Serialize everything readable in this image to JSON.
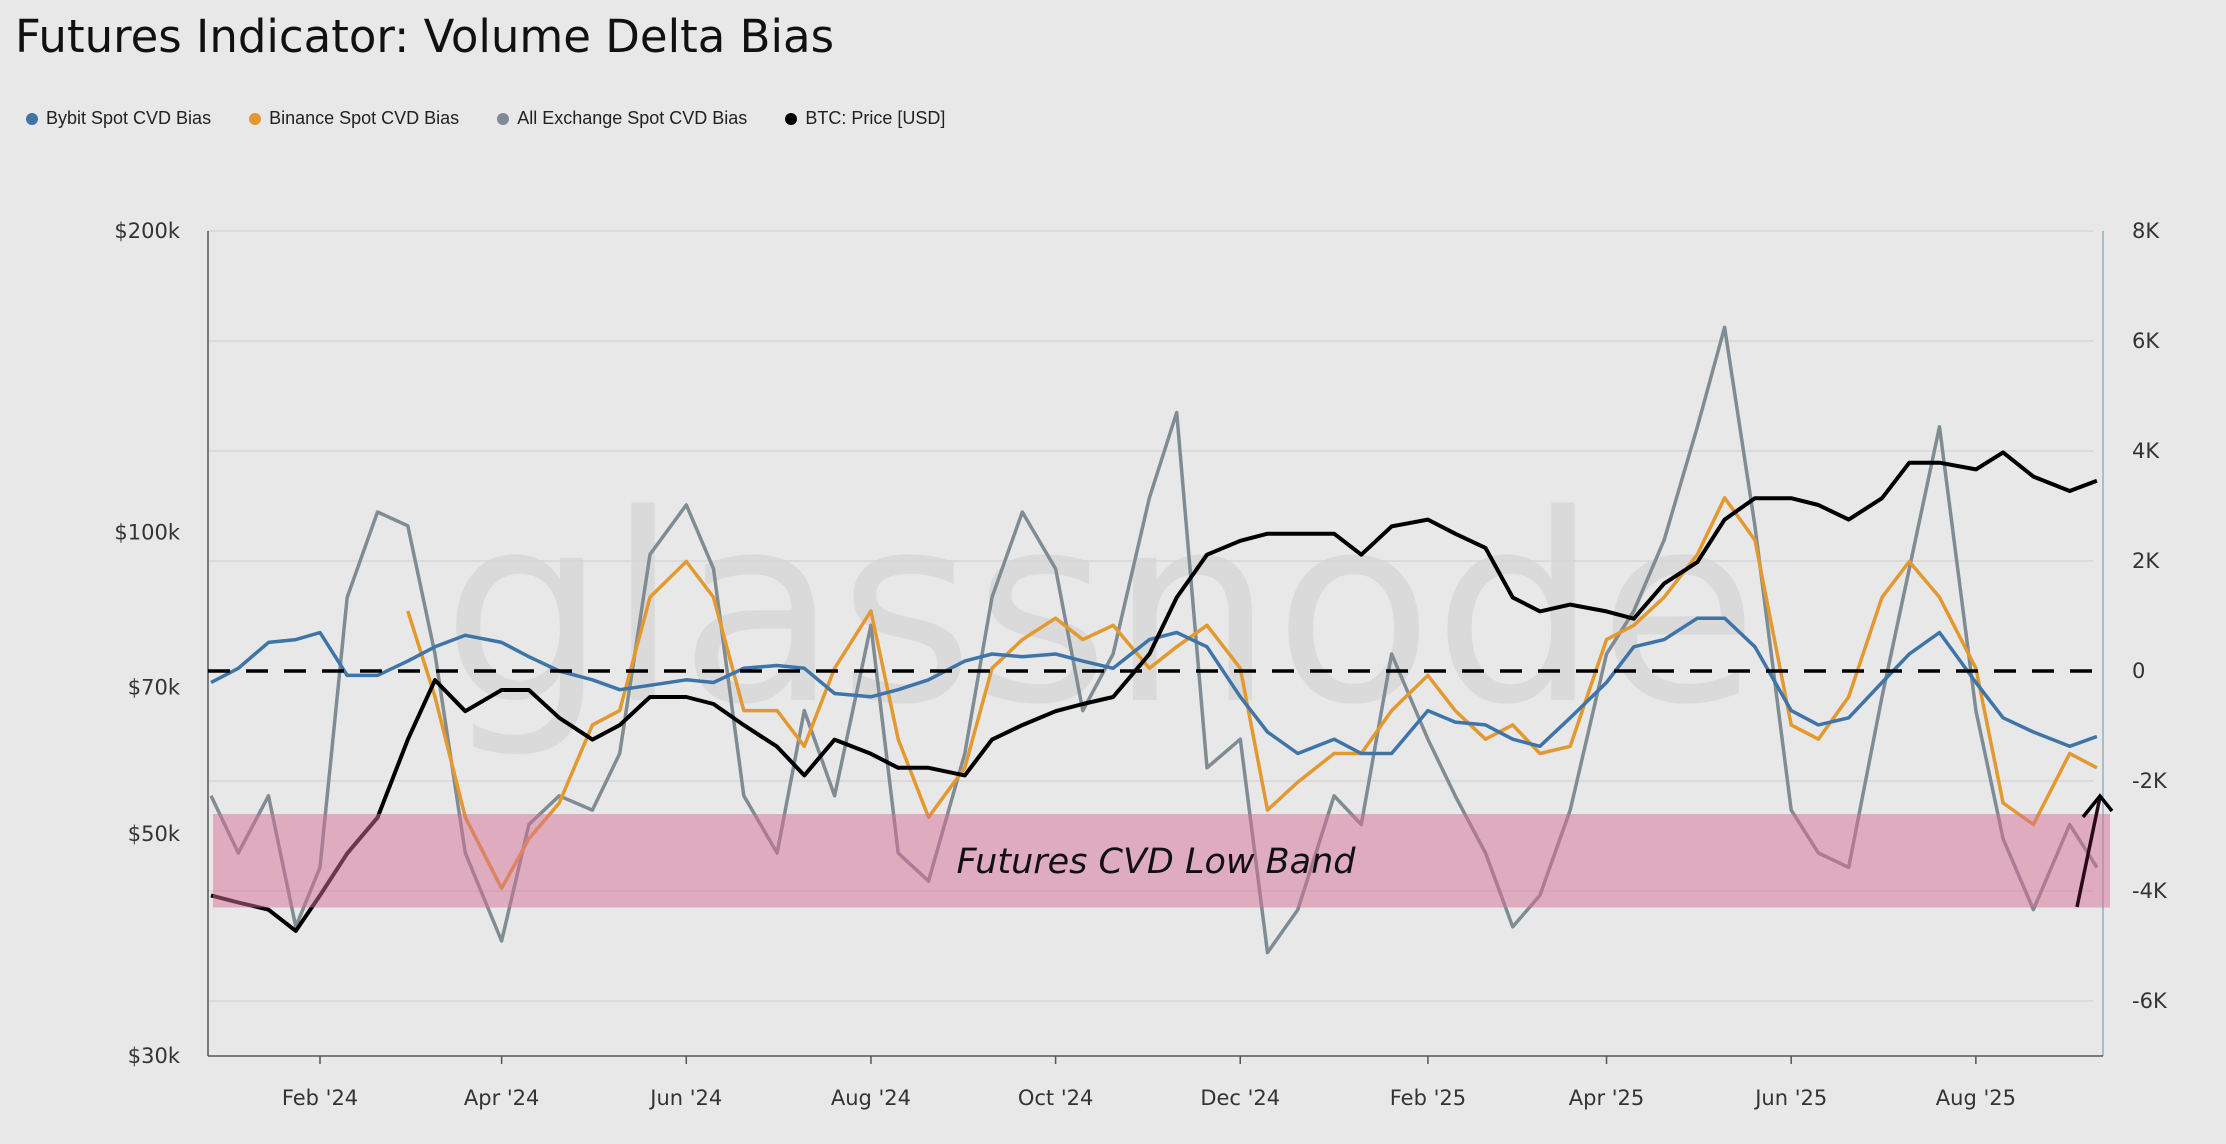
{
  "title": "Futures Indicator: Volume Delta Bias",
  "watermark": "glassnode",
  "legend": [
    {
      "label": "Bybit Spot CVD Bias",
      "color": "#3f74a8"
    },
    {
      "label": "Binance Spot CVD Bias",
      "color": "#e3992f"
    },
    {
      "label": "All Exchange Spot CVD Bias",
      "color": "#7f8c93"
    },
    {
      "label": "BTC: Price [USD]",
      "color": "#000000"
    }
  ],
  "chart_data": {
    "type": "line",
    "title": "Futures Indicator: Volume Delta Bias",
    "xlim": [
      "2023-12-26",
      "2025-09-12"
    ],
    "x_ticks": [
      {
        "date": "2024-02-01",
        "label": "Feb '24"
      },
      {
        "date": "2024-04-01",
        "label": "Apr '24"
      },
      {
        "date": "2024-06-01",
        "label": "Jun '24"
      },
      {
        "date": "2024-08-01",
        "label": "Aug '24"
      },
      {
        "date": "2024-10-01",
        "label": "Oct '24"
      },
      {
        "date": "2024-12-01",
        "label": "Dec '24"
      },
      {
        "date": "2025-02-01",
        "label": "Feb '25"
      },
      {
        "date": "2025-04-01",
        "label": "Apr '25"
      },
      {
        "date": "2025-06-01",
        "label": "Jun '25"
      },
      {
        "date": "2025-08-01",
        "label": "Aug '25"
      }
    ],
    "y_left": {
      "scale": "log",
      "ylim": [
        30000,
        200000
      ],
      "ticks": [
        {
          "value": 200000,
          "label": "$200k"
        },
        {
          "value": 100000,
          "label": "$100k"
        },
        {
          "value": 70000,
          "label": "$70k"
        },
        {
          "value": 50000,
          "label": "$50k"
        },
        {
          "value": 30000,
          "label": "$30k"
        }
      ]
    },
    "y_right": {
      "scale": "linear",
      "ylim": [
        -7000,
        8000
      ],
      "ticks": [
        {
          "value": 8000,
          "label": "8K"
        },
        {
          "value": 6000,
          "label": "6K"
        },
        {
          "value": 4000,
          "label": "4K"
        },
        {
          "value": 2000,
          "label": "2K"
        },
        {
          "value": 0,
          "label": "0"
        },
        {
          "value": -2000,
          "label": "-2K"
        },
        {
          "value": -4000,
          "label": "-4K"
        },
        {
          "value": -6000,
          "label": "-6K"
        }
      ]
    },
    "grid": true,
    "legend_position": "top-left",
    "reference_line": {
      "value": 0,
      "axis": "right",
      "style": "dashed",
      "color": "#000000"
    },
    "band": {
      "label": "Futures CVD Low Band",
      "range": [
        -4300,
        -2600
      ],
      "axis": "right",
      "color": "#d66e96"
    },
    "x": [
      "2023-12-27",
      "2024-01-05",
      "2024-01-15",
      "2024-01-24",
      "2024-02-01",
      "2024-02-10",
      "2024-02-20",
      "2024-03-01",
      "2024-03-10",
      "2024-03-20",
      "2024-04-01",
      "2024-04-10",
      "2024-04-20",
      "2024-05-01",
      "2024-05-10",
      "2024-05-20",
      "2024-06-01",
      "2024-06-10",
      "2024-06-20",
      "2024-07-01",
      "2024-07-10",
      "2024-07-20",
      "2024-08-01",
      "2024-08-10",
      "2024-08-20",
      "2024-09-01",
      "2024-09-10",
      "2024-09-20",
      "2024-10-01",
      "2024-10-10",
      "2024-10-20",
      "2024-11-01",
      "2024-11-10",
      "2024-11-20",
      "2024-12-01",
      "2024-12-10",
      "2024-12-20",
      "2025-01-01",
      "2025-01-10",
      "2025-01-20",
      "2025-02-01",
      "2025-02-10",
      "2025-02-20",
      "2025-03-01",
      "2025-03-10",
      "2025-03-20",
      "2025-04-01",
      "2025-04-10",
      "2025-04-20",
      "2025-05-01",
      "2025-05-10",
      "2025-05-20",
      "2025-06-01",
      "2025-06-10",
      "2025-06-20",
      "2025-07-01",
      "2025-07-10",
      "2025-07-20",
      "2025-08-01",
      "2025-08-10",
      "2025-08-20",
      "2025-09-01",
      "2025-09-10"
    ],
    "series": [
      {
        "name": "All Exchange Spot CVD Bias",
        "axis": "right",
        "color": "#7f8c93",
        "values": [
          -2270,
          -3310,
          -2270,
          -4650,
          -3570,
          1340,
          2890,
          2640,
          310,
          -3310,
          -4910,
          -2790,
          -2270,
          -2530,
          -1500,
          2120,
          3020,
          1860,
          -2270,
          -3310,
          -720,
          -2270,
          830,
          -3310,
          -3820,
          -1500,
          1340,
          2890,
          1860,
          -720,
          310,
          3150,
          4700,
          -1760,
          -1240,
          -5120,
          -4340,
          -2270,
          -2790,
          310,
          -1240,
          -2270,
          -3310,
          -4650,
          -4080,
          -2530,
          310,
          1090,
          2380,
          4440,
          6250,
          2640,
          -2530,
          -3310,
          -3570,
          -470,
          1860,
          4440,
          -720,
          -3050,
          -4340,
          -2790,
          -3570
        ]
      },
      {
        "name": "Binance Spot CVD Bias",
        "axis": "right",
        "color": "#e3992f",
        "values": [
          null,
          null,
          null,
          null,
          null,
          null,
          null,
          1090,
          -470,
          -2660,
          -3950,
          -3050,
          -2400,
          -980,
          -720,
          1340,
          1990,
          1340,
          -720,
          -720,
          -1370,
          50,
          1090,
          -1240,
          -2660,
          -1760,
          50,
          570,
          960,
          570,
          830,
          50,
          440,
          830,
          50,
          -2530,
          -2020,
          -1500,
          -1500,
          -720,
          -80,
          -720,
          -1240,
          -980,
          -1500,
          -1370,
          570,
          830,
          1340,
          2120,
          3150,
          2380,
          -980,
          -1240,
          -470,
          1340,
          1990,
          1340,
          50,
          -2400,
          -2790,
          -1500,
          -1760
        ]
      },
      {
        "name": "Bybit Spot CVD Bias",
        "axis": "right",
        "color": "#3f74a8",
        "values": [
          -210,
          50,
          520,
          570,
          700,
          -80,
          -80,
          180,
          440,
          650,
          520,
          260,
          0,
          -160,
          -340,
          -260,
          -160,
          -210,
          50,
          100,
          50,
          -410,
          -470,
          -340,
          -160,
          180,
          310,
          260,
          310,
          180,
          50,
          570,
          700,
          440,
          -470,
          -1110,
          -1500,
          -1240,
          -1500,
          -1500,
          -720,
          -930,
          -980,
          -1240,
          -1370,
          -850,
          -210,
          440,
          570,
          960,
          960,
          440,
          -720,
          -980,
          -850,
          -210,
          310,
          700,
          -210,
          -850,
          -1110,
          -1370,
          -1190
        ]
      },
      {
        "name": "BTC: Price [USD]",
        "axis": "left",
        "color": "#000000",
        "values": [
          43400,
          42700,
          42000,
          40000,
          43400,
          47800,
          51900,
          62100,
          71200,
          66300,
          69600,
          69600,
          65300,
          62100,
          64200,
          68500,
          68500,
          67400,
          64200,
          61100,
          57200,
          62100,
          60100,
          58200,
          58200,
          57200,
          62100,
          64200,
          66300,
          67400,
          68500,
          75600,
          86100,
          95000,
          98100,
          99700,
          99700,
          99700,
          95000,
          101400,
          103000,
          99700,
          96500,
          86100,
          83400,
          84700,
          83400,
          82000,
          88900,
          93400,
          103000,
          108200,
          108200,
          106500,
          103000,
          108200,
          117400,
          117400,
          115600,
          120200,
          113700,
          110000,
          112600
        ]
      }
    ]
  }
}
